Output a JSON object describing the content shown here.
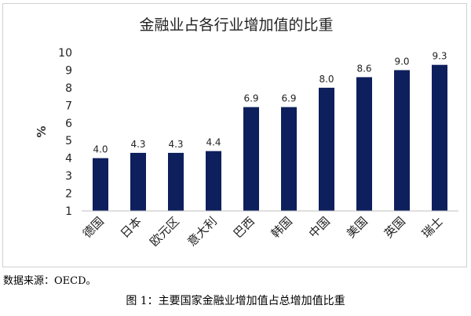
{
  "chart_data": {
    "type": "bar",
    "title": "金融业占各行业增加值的比重",
    "ylabel": "%",
    "xlabel": "",
    "ylim": [
      1,
      10
    ],
    "yticks": [
      1,
      2,
      3,
      4,
      5,
      6,
      7,
      8,
      9,
      10
    ],
    "grid": false,
    "bar_color": "#0d1f5c",
    "categories": [
      "德国",
      "日本",
      "欧元区",
      "意大利",
      "巴西",
      "韩国",
      "中国",
      "美国",
      "英国",
      "瑞士"
    ],
    "values": [
      4.0,
      4.3,
      4.3,
      4.4,
      6.9,
      6.9,
      8.0,
      8.6,
      9.0,
      9.3
    ],
    "data_labels": [
      "4.0",
      "4.3",
      "4.3",
      "4.4",
      "6.9",
      "6.9",
      "8.0",
      "8.6",
      "9.0",
      "9.3"
    ]
  },
  "footer": {
    "source": "数据来源：OECD。",
    "caption": "图 1：主要国家金融业增加值占总增加值比重"
  }
}
